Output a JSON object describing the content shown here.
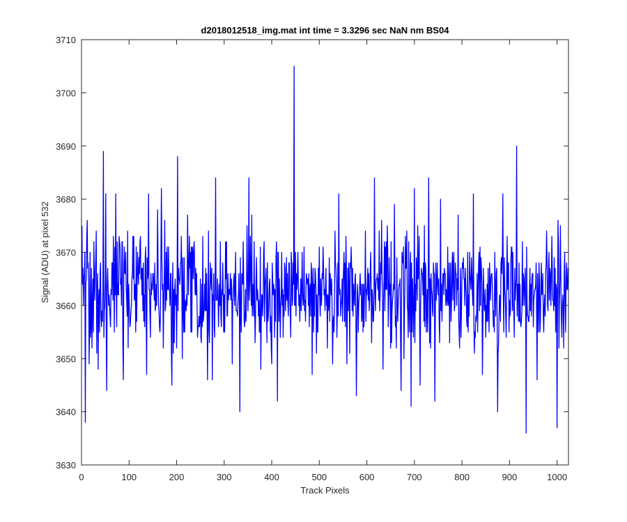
{
  "chart_data": {
    "type": "line",
    "title": "d2018012518_img.mat int time = 3.3296 sec  NaN nm BS04",
    "xlabel": "Track Pixels",
    "ylabel": "Signal (ADU) at pixel 532",
    "xlim": [
      0,
      1024
    ],
    "ylim": [
      3630,
      3710
    ],
    "xticks": [
      0,
      100,
      200,
      300,
      400,
      500,
      600,
      700,
      800,
      900,
      1000
    ],
    "yticks": [
      3630,
      3640,
      3650,
      3660,
      3670,
      3680,
      3690,
      3700,
      3710
    ],
    "grid": false,
    "legend": "none",
    "series": [
      {
        "color": "#0000ff",
        "x_start": 1,
        "x_step": 1,
        "mean": 3663,
        "values_note_points": [
          [
            1,
            3675
          ],
          [
            5,
            3665
          ],
          [
            8,
            3638
          ],
          [
            11,
            3673
          ],
          [
            12,
            3676
          ],
          [
            16,
            3649
          ],
          [
            22,
            3652
          ],
          [
            30,
            3669
          ],
          [
            35,
            3648
          ],
          [
            46,
            3689
          ],
          [
            51,
            3681
          ],
          [
            53,
            3644
          ],
          [
            72,
            3681
          ],
          [
            80,
            3672
          ],
          [
            88,
            3646
          ],
          [
            98,
            3652
          ],
          [
            137,
            3647
          ],
          [
            141,
            3681
          ],
          [
            160,
            3678
          ],
          [
            168,
            3682
          ],
          [
            180,
            3671
          ],
          [
            190,
            3645
          ],
          [
            202,
            3688
          ],
          [
            212,
            3650
          ],
          [
            223,
            3677
          ],
          [
            255,
            3673
          ],
          [
            265,
            3646
          ],
          [
            275,
            3646
          ],
          [
            282,
            3684
          ],
          [
            300,
            3662
          ],
          [
            317,
            3649
          ],
          [
            333,
            3640
          ],
          [
            352,
            3684
          ],
          [
            358,
            3677
          ],
          [
            377,
            3648
          ],
          [
            400,
            3649
          ],
          [
            412,
            3642
          ],
          [
            425,
            3662
          ],
          [
            447,
            3705
          ],
          [
            451,
            3658
          ],
          [
            485,
            3647
          ],
          [
            528,
            3649
          ],
          [
            541,
            3681
          ],
          [
            556,
            3673
          ],
          [
            578,
            3643
          ],
          [
            594,
            3656
          ],
          [
            616,
            3684
          ],
          [
            634,
            3648
          ],
          [
            658,
            3679
          ],
          [
            672,
            3644
          ],
          [
            693,
            3641
          ],
          [
            700,
            3682
          ],
          [
            712,
            3645
          ],
          [
            730,
            3684
          ],
          [
            743,
            3642
          ],
          [
            755,
            3680
          ],
          [
            792,
            3677
          ],
          [
            824,
            3681
          ],
          [
            843,
            3647
          ],
          [
            875,
            3640
          ],
          [
            886,
            3681
          ],
          [
            915,
            3690
          ],
          [
            935,
            3636
          ],
          [
            958,
            3646
          ],
          [
            1000,
            3637
          ],
          [
            1002,
            3676
          ],
          [
            1020,
            3668
          ]
        ]
      }
    ]
  }
}
